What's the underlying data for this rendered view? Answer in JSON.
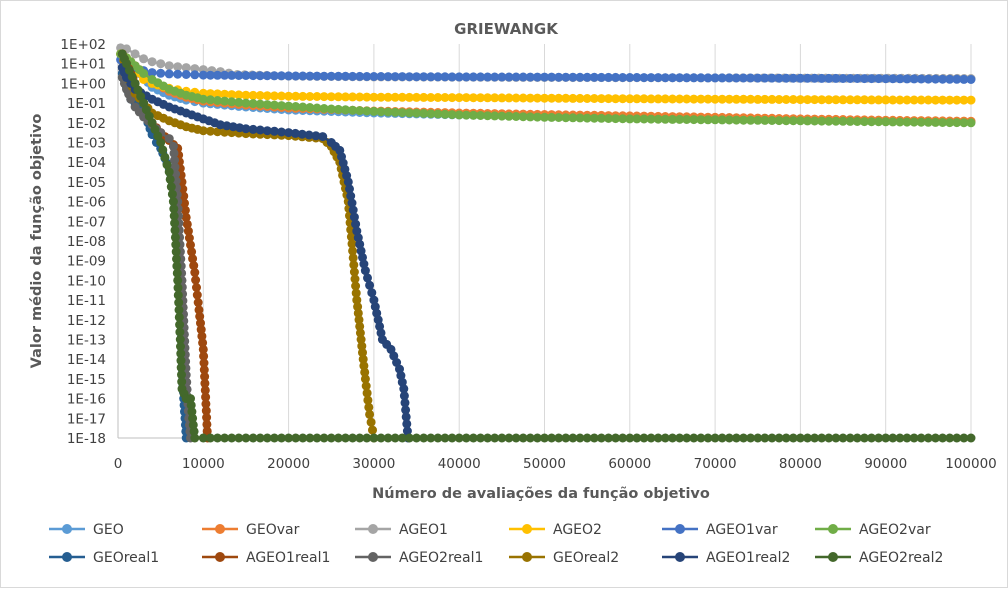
{
  "chart_data": {
    "type": "line",
    "title": "GRIEWANGK",
    "xlabel": "Número de avaliações da função objetivo",
    "ylabel": "Valor médio da função objetivo",
    "xlim": [
      0,
      100000
    ],
    "ylim_log10": [
      -18,
      2
    ],
    "y_scale": "log",
    "grid": "vertical",
    "legend_position": "bottom",
    "x_ticks": [
      "0",
      "10000",
      "20000",
      "30000",
      "40000",
      "50000",
      "60000",
      "70000",
      "80000",
      "90000",
      "100000"
    ],
    "y_ticks": [
      "1E+02",
      "1E+01",
      "1E+00",
      "1E-01",
      "1E-02",
      "1E-03",
      "1E-04",
      "1E-05",
      "1E-06",
      "1E-07",
      "1E-08",
      "1E-09",
      "1E-10",
      "1E-11",
      "1E-12",
      "1E-13",
      "1E-14",
      "1E-15",
      "1E-16",
      "1E-17",
      "1E-18"
    ],
    "series": [
      {
        "name": "GEO",
        "color": "#5B9BD5",
        "x": [
          300,
          1000,
          2000,
          3000,
          4000,
          6000,
          8000,
          10000,
          15000,
          20000,
          30000,
          40000,
          50000,
          60000,
          70000,
          80000,
          90000,
          100000
        ],
        "y_log10": [
          1.5,
          1.2,
          0.7,
          0.3,
          -0.2,
          -0.6,
          -0.85,
          -1.0,
          -1.2,
          -1.35,
          -1.5,
          -1.6,
          -1.68,
          -1.74,
          -1.8,
          -1.85,
          -1.9,
          -1.95
        ]
      },
      {
        "name": "GEOvar",
        "color": "#ED7D31",
        "x": [
          300,
          1000,
          2000,
          3000,
          4000,
          6000,
          8000,
          10000,
          15000,
          20000,
          30000,
          40000,
          50000,
          60000,
          70000,
          80000,
          90000,
          100000
        ],
        "y_log10": [
          1.5,
          1.3,
          0.9,
          0.5,
          0.1,
          -0.4,
          -0.7,
          -0.9,
          -1.1,
          -1.25,
          -1.4,
          -1.5,
          -1.58,
          -1.65,
          -1.72,
          -1.8,
          -1.87,
          -1.92
        ]
      },
      {
        "name": "AGEO1",
        "color": "#A5A5A5",
        "x": [
          300,
          1000,
          2000,
          3000,
          4000,
          5000,
          6000,
          8000,
          10000,
          12000,
          14000,
          20000,
          30000,
          50000,
          70000,
          100000
        ],
        "y_log10": [
          1.8,
          1.75,
          1.5,
          1.25,
          1.1,
          1.0,
          0.9,
          0.8,
          0.7,
          0.6,
          0.45,
          0.37,
          0.33,
          0.3,
          0.28,
          0.25
        ]
      },
      {
        "name": "AGEO2",
        "color": "#FFC000",
        "x": [
          300,
          1000,
          2000,
          3000,
          4000,
          6000,
          8000,
          10000,
          15000,
          20000,
          30000,
          40000,
          50000,
          60000,
          70000,
          80000,
          90000,
          100000
        ],
        "y_log10": [
          1.5,
          1.0,
          0.5,
          0.2,
          0.0,
          -0.25,
          -0.4,
          -0.5,
          -0.6,
          -0.65,
          -0.7,
          -0.72,
          -0.75,
          -0.78,
          -0.8,
          -0.82,
          -0.84,
          -0.85
        ]
      },
      {
        "name": "AGEO1var",
        "color": "#4472C4",
        "x": [
          300,
          1000,
          2000,
          3000,
          4000,
          6000,
          8000,
          10000,
          15000,
          20000,
          30000,
          40000,
          50000,
          60000,
          70000,
          80000,
          90000,
          100000
        ],
        "y_log10": [
          1.2,
          1.0,
          0.8,
          0.65,
          0.55,
          0.48,
          0.45,
          0.42,
          0.4,
          0.38,
          0.35,
          0.33,
          0.32,
          0.3,
          0.28,
          0.26,
          0.24,
          0.2
        ]
      },
      {
        "name": "AGEO2var",
        "color": "#70AD47",
        "x": [
          300,
          1000,
          2000,
          3000,
          4000,
          6000,
          8000,
          10000,
          15000,
          20000,
          25000,
          30000,
          40000,
          50000,
          60000,
          70000,
          80000,
          90000,
          100000
        ],
        "y_log10": [
          1.5,
          1.3,
          0.9,
          0.5,
          0.2,
          -0.3,
          -0.6,
          -0.8,
          -1.0,
          -1.15,
          -1.3,
          -1.42,
          -1.6,
          -1.72,
          -1.8,
          -1.85,
          -1.9,
          -1.95,
          -2.0
        ]
      },
      {
        "name": "GEOreal1",
        "color": "#255E91",
        "x": [
          500,
          1000,
          1500,
          2000,
          2500,
          3000,
          3500,
          4000,
          4500,
          5000,
          5500,
          6000,
          6500,
          7000,
          7200,
          7500,
          7700,
          8000
        ],
        "y_log10": [
          0.5,
          -0.2,
          -0.8,
          -1.0,
          -1.3,
          -1.6,
          -2.0,
          -2.6,
          -3.0,
          -3.3,
          -3.8,
          -4.3,
          -5.2,
          -8.0,
          -10.0,
          -14.0,
          -16.0,
          -18.0
        ]
      },
      {
        "name": "AGEO1real1",
        "color": "#9E480E",
        "x": [
          500,
          1000,
          1500,
          2000,
          3000,
          4000,
          5000,
          6000,
          7000,
          7500,
          8000,
          8500,
          9000,
          9500,
          10000,
          10500
        ],
        "y_log10": [
          1.5,
          1.0,
          0.5,
          0.0,
          -1.0,
          -2.0,
          -2.5,
          -2.9,
          -3.3,
          -5.0,
          -6.8,
          -8.2,
          -9.6,
          -11.5,
          -13.5,
          -18.0
        ]
      },
      {
        "name": "AGEO2real1",
        "color": "#636363",
        "x": [
          500,
          1000,
          1500,
          2000,
          3000,
          4000,
          5000,
          6000,
          6500,
          7000,
          7500,
          8000,
          8300,
          8500
        ],
        "y_log10": [
          0.3,
          -0.3,
          -0.8,
          -1.2,
          -1.7,
          -2.1,
          -2.5,
          -2.8,
          -3.2,
          -6.0,
          -10.0,
          -14.8,
          -17.0,
          -18.0
        ]
      },
      {
        "name": "GEOreal2",
        "color": "#997300",
        "x": [
          500,
          1000,
          2000,
          4000,
          6000,
          8000,
          10000,
          15000,
          20000,
          24000,
          25000,
          26000,
          27000,
          27500,
          28000,
          28500,
          29000,
          29500,
          30000
        ],
        "y_log10": [
          1.5,
          0.5,
          -0.5,
          -1.5,
          -1.9,
          -2.2,
          -2.4,
          -2.55,
          -2.65,
          -2.8,
          -3.2,
          -4.0,
          -6.0,
          -8.5,
          -11.0,
          -13.0,
          -15.0,
          -16.8,
          -18.0
        ]
      },
      {
        "name": "AGEO1real2",
        "color": "#264478",
        "x": [
          500,
          1000,
          2000,
          4000,
          6000,
          8000,
          10000,
          12000,
          15000,
          20000,
          24000,
          25000,
          26000,
          27000,
          28000,
          29000,
          30000,
          31000,
          32000,
          33000,
          33500,
          34000
        ],
        "y_log10": [
          0.8,
          0.3,
          -0.3,
          -0.8,
          -1.2,
          -1.5,
          -1.8,
          -2.1,
          -2.3,
          -2.5,
          -2.7,
          -3.0,
          -3.4,
          -5.0,
          -7.5,
          -9.5,
          -11.0,
          -13.0,
          -13.5,
          -14.5,
          -15.5,
          -18.0
        ]
      },
      {
        "name": "AGEO2real2",
        "color": "#43682B",
        "x": [
          500,
          1000,
          2000,
          3000,
          4000,
          5000,
          6000,
          6500,
          7000,
          7300,
          7500,
          8000,
          8500,
          9000,
          10000,
          20000,
          30000,
          40000,
          50000,
          60000,
          70000,
          80000,
          90000,
          100000
        ],
        "y_log10": [
          1.5,
          1.0,
          0.0,
          -1.0,
          -2.0,
          -3.0,
          -4.5,
          -6.0,
          -10.0,
          -13.0,
          -15.5,
          -16.0,
          -16.0,
          -18.0,
          -18.0,
          -18.0,
          -18.0,
          -18.0,
          -18.0,
          -18.0,
          -18.0,
          -18.0,
          -18.0,
          -18.0
        ]
      }
    ]
  }
}
